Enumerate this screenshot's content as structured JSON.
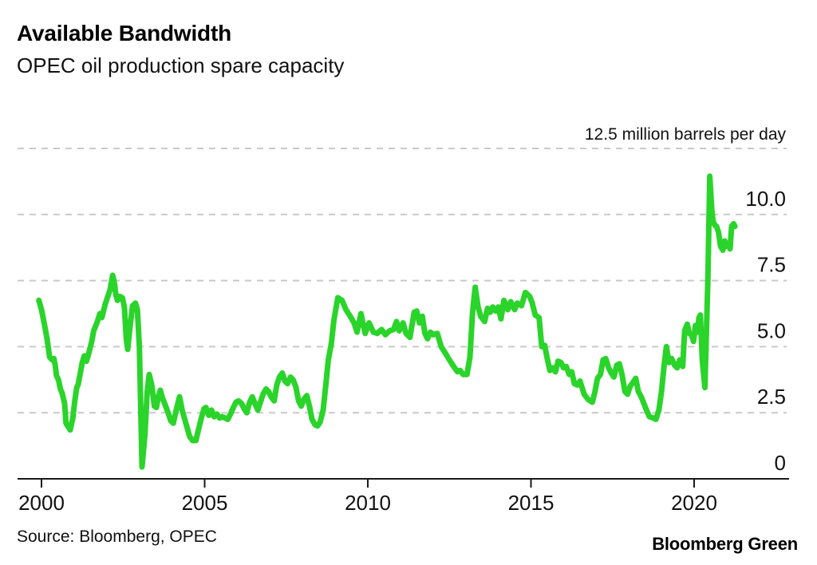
{
  "header": {
    "title": "Available Bandwidth",
    "subtitle": "OPEC oil production spare capacity"
  },
  "footer": {
    "source": "Source: Bloomberg, OPEC",
    "brand": "Bloomberg Green"
  },
  "chart_data": {
    "type": "line",
    "title": "Available Bandwidth",
    "subtitle": "OPEC oil production spare capacity",
    "unit_label": "12.5 million barrels per day",
    "series_name": "OPEC oil production spare capacity (million barrels per day)",
    "grid": "dashed horizontal",
    "legend_position": "none",
    "colors": {
      "line": "#2ad42a",
      "grid": "#c9c9c9",
      "axis": "#1a1a1a",
      "text": "#111111"
    },
    "xlim": [
      1999.9,
      2022.9
    ],
    "ylim": [
      0,
      12.5
    ],
    "x_ticks": [
      {
        "value": 2000,
        "label": "2000"
      },
      {
        "value": 2005,
        "label": "2005"
      },
      {
        "value": 2010,
        "label": "2010"
      },
      {
        "value": 2015,
        "label": "2015"
      },
      {
        "value": 2020,
        "label": "2020"
      }
    ],
    "y_ticks": [
      {
        "value": 12.5,
        "label": "12.5 million barrels per day",
        "kind": "unit"
      },
      {
        "value": 10,
        "label": "10.0",
        "kind": "tick"
      },
      {
        "value": 7.5,
        "label": "7.5",
        "kind": "tick"
      },
      {
        "value": 5,
        "label": "5.0",
        "kind": "tick"
      },
      {
        "value": 2.5,
        "label": "2.5",
        "kind": "tick"
      },
      {
        "value": 0,
        "label": "0",
        "kind": "tick"
      }
    ],
    "points": [
      [
        1999.92,
        6.75
      ],
      [
        2000.0,
        6.4
      ],
      [
        2000.08,
        5.9
      ],
      [
        2000.17,
        5.3
      ],
      [
        2000.25,
        4.6
      ],
      [
        2000.33,
        4.5
      ],
      [
        2000.38,
        4.55
      ],
      [
        2000.42,
        4.3
      ],
      [
        2000.46,
        3.9
      ],
      [
        2000.52,
        3.75
      ],
      [
        2000.58,
        3.4
      ],
      [
        2000.63,
        3.25
      ],
      [
        2000.71,
        2.85
      ],
      [
        2000.75,
        2.1
      ],
      [
        2000.83,
        1.95
      ],
      [
        2000.88,
        1.85
      ],
      [
        2000.96,
        2.3
      ],
      [
        2001.02,
        2.95
      ],
      [
        2001.08,
        3.45
      ],
      [
        2001.12,
        3.55
      ],
      [
        2001.19,
        4.0
      ],
      [
        2001.25,
        4.4
      ],
      [
        2001.31,
        4.65
      ],
      [
        2001.38,
        4.45
      ],
      [
        2001.46,
        4.8
      ],
      [
        2001.54,
        5.2
      ],
      [
        2001.6,
        5.6
      ],
      [
        2001.7,
        5.9
      ],
      [
        2001.79,
        6.25
      ],
      [
        2001.85,
        6.1
      ],
      [
        2001.95,
        6.6
      ],
      [
        2002.02,
        6.85
      ],
      [
        2002.1,
        7.15
      ],
      [
        2002.18,
        7.7
      ],
      [
        2002.23,
        7.45
      ],
      [
        2002.28,
        6.95
      ],
      [
        2002.33,
        6.75
      ],
      [
        2002.4,
        6.9
      ],
      [
        2002.48,
        6.85
      ],
      [
        2002.54,
        6.5
      ],
      [
        2002.6,
        5.3
      ],
      [
        2002.64,
        4.9
      ],
      [
        2002.71,
        5.7
      ],
      [
        2002.79,
        6.55
      ],
      [
        2002.88,
        6.65
      ],
      [
        2002.94,
        6.4
      ],
      [
        2003.0,
        5.0
      ],
      [
        2003.08,
        0.45
      ],
      [
        2003.17,
        1.7
      ],
      [
        2003.24,
        3.3
      ],
      [
        2003.3,
        3.95
      ],
      [
        2003.38,
        3.55
      ],
      [
        2003.46,
        2.75
      ],
      [
        2003.52,
        2.7
      ],
      [
        2003.58,
        3.1
      ],
      [
        2003.64,
        3.35
      ],
      [
        2003.71,
        3.05
      ],
      [
        2003.79,
        2.8
      ],
      [
        2003.88,
        2.5
      ],
      [
        2003.96,
        2.2
      ],
      [
        2004.04,
        2.1
      ],
      [
        2004.13,
        2.6
      ],
      [
        2004.23,
        3.1
      ],
      [
        2004.31,
        2.6
      ],
      [
        2004.38,
        2.3
      ],
      [
        2004.46,
        1.95
      ],
      [
        2004.54,
        1.6
      ],
      [
        2004.63,
        1.45
      ],
      [
        2004.73,
        1.45
      ],
      [
        2004.81,
        1.85
      ],
      [
        2004.9,
        2.3
      ],
      [
        2004.98,
        2.65
      ],
      [
        2005.04,
        2.7
      ],
      [
        2005.13,
        2.4
      ],
      [
        2005.21,
        2.6
      ],
      [
        2005.29,
        2.35
      ],
      [
        2005.38,
        2.45
      ],
      [
        2005.46,
        2.3
      ],
      [
        2005.54,
        2.35
      ],
      [
        2005.63,
        2.3
      ],
      [
        2005.71,
        2.25
      ],
      [
        2005.79,
        2.45
      ],
      [
        2005.88,
        2.7
      ],
      [
        2005.96,
        2.9
      ],
      [
        2006.04,
        2.95
      ],
      [
        2006.13,
        2.85
      ],
      [
        2006.21,
        2.65
      ],
      [
        2006.29,
        2.5
      ],
      [
        2006.38,
        2.9
      ],
      [
        2006.46,
        3.1
      ],
      [
        2006.54,
        2.85
      ],
      [
        2006.63,
        2.6
      ],
      [
        2006.71,
        2.9
      ],
      [
        2006.79,
        3.2
      ],
      [
        2006.88,
        3.4
      ],
      [
        2006.96,
        3.3
      ],
      [
        2007.04,
        3.1
      ],
      [
        2007.13,
        2.95
      ],
      [
        2007.21,
        3.55
      ],
      [
        2007.29,
        3.85
      ],
      [
        2007.38,
        4.0
      ],
      [
        2007.46,
        3.7
      ],
      [
        2007.54,
        3.6
      ],
      [
        2007.63,
        3.85
      ],
      [
        2007.71,
        3.75
      ],
      [
        2007.79,
        3.5
      ],
      [
        2007.88,
        2.95
      ],
      [
        2007.96,
        2.75
      ],
      [
        2008.04,
        3.0
      ],
      [
        2008.13,
        3.15
      ],
      [
        2008.21,
        2.75
      ],
      [
        2008.29,
        2.25
      ],
      [
        2008.38,
        2.05
      ],
      [
        2008.46,
        2.0
      ],
      [
        2008.54,
        2.15
      ],
      [
        2008.63,
        2.6
      ],
      [
        2008.71,
        3.5
      ],
      [
        2008.79,
        4.5
      ],
      [
        2008.88,
        5.1
      ],
      [
        2008.96,
        6.0
      ],
      [
        2009.08,
        6.85
      ],
      [
        2009.21,
        6.75
      ],
      [
        2009.33,
        6.4
      ],
      [
        2009.46,
        6.15
      ],
      [
        2009.58,
        5.9
      ],
      [
        2009.67,
        5.55
      ],
      [
        2009.79,
        6.25
      ],
      [
        2009.92,
        5.5
      ],
      [
        2010.04,
        5.9
      ],
      [
        2010.17,
        5.55
      ],
      [
        2010.29,
        5.5
      ],
      [
        2010.42,
        5.65
      ],
      [
        2010.54,
        5.45
      ],
      [
        2010.67,
        5.6
      ],
      [
        2010.79,
        5.65
      ],
      [
        2010.88,
        5.95
      ],
      [
        2010.96,
        5.6
      ],
      [
        2011.08,
        5.9
      ],
      [
        2011.17,
        5.5
      ],
      [
        2011.29,
        5.35
      ],
      [
        2011.42,
        6.3
      ],
      [
        2011.5,
        6.35
      ],
      [
        2011.58,
        5.9
      ],
      [
        2011.67,
        6.15
      ],
      [
        2011.75,
        5.5
      ],
      [
        2011.83,
        5.3
      ],
      [
        2011.92,
        5.55
      ],
      [
        2012.0,
        5.45
      ],
      [
        2012.13,
        5.5
      ],
      [
        2012.25,
        5.0
      ],
      [
        2012.38,
        4.75
      ],
      [
        2012.5,
        4.5
      ],
      [
        2012.63,
        4.25
      ],
      [
        2012.75,
        4.05
      ],
      [
        2012.83,
        4.1
      ],
      [
        2012.92,
        3.95
      ],
      [
        2013.04,
        3.95
      ],
      [
        2013.13,
        4.6
      ],
      [
        2013.21,
        6.3
      ],
      [
        2013.29,
        7.25
      ],
      [
        2013.38,
        6.5
      ],
      [
        2013.46,
        6.15
      ],
      [
        2013.58,
        5.95
      ],
      [
        2013.67,
        6.45
      ],
      [
        2013.75,
        6.3
      ],
      [
        2013.83,
        6.5
      ],
      [
        2013.92,
        6.35
      ],
      [
        2014.0,
        6.5
      ],
      [
        2014.08,
        6.05
      ],
      [
        2014.17,
        6.75
      ],
      [
        2014.29,
        6.4
      ],
      [
        2014.38,
        6.7
      ],
      [
        2014.5,
        6.4
      ],
      [
        2014.58,
        6.65
      ],
      [
        2014.71,
        6.55
      ],
      [
        2014.83,
        7.05
      ],
      [
        2014.96,
        6.9
      ],
      [
        2015.04,
        6.65
      ],
      [
        2015.13,
        6.2
      ],
      [
        2015.25,
        6.1
      ],
      [
        2015.33,
        5.0
      ],
      [
        2015.42,
        5.05
      ],
      [
        2015.5,
        4.55
      ],
      [
        2015.58,
        4.1
      ],
      [
        2015.67,
        4.2
      ],
      [
        2015.75,
        4.05
      ],
      [
        2015.83,
        4.45
      ],
      [
        2015.92,
        4.4
      ],
      [
        2016.0,
        4.2
      ],
      [
        2016.08,
        4.25
      ],
      [
        2016.17,
        3.95
      ],
      [
        2016.25,
        4.05
      ],
      [
        2016.33,
        3.6
      ],
      [
        2016.42,
        3.55
      ],
      [
        2016.5,
        3.7
      ],
      [
        2016.63,
        3.2
      ],
      [
        2016.75,
        3.0
      ],
      [
        2016.88,
        2.9
      ],
      [
        2016.96,
        3.3
      ],
      [
        2017.04,
        3.8
      ],
      [
        2017.13,
        3.95
      ],
      [
        2017.21,
        4.5
      ],
      [
        2017.29,
        4.55
      ],
      [
        2017.38,
        4.2
      ],
      [
        2017.46,
        4.0
      ],
      [
        2017.54,
        3.85
      ],
      [
        2017.63,
        4.3
      ],
      [
        2017.71,
        4.35
      ],
      [
        2017.79,
        3.95
      ],
      [
        2017.88,
        3.3
      ],
      [
        2017.96,
        3.2
      ],
      [
        2018.04,
        3.5
      ],
      [
        2018.13,
        3.65
      ],
      [
        2018.21,
        3.8
      ],
      [
        2018.29,
        3.3
      ],
      [
        2018.38,
        3.1
      ],
      [
        2018.46,
        2.85
      ],
      [
        2018.54,
        2.6
      ],
      [
        2018.63,
        2.35
      ],
      [
        2018.75,
        2.3
      ],
      [
        2018.83,
        2.25
      ],
      [
        2018.92,
        2.6
      ],
      [
        2019.0,
        3.3
      ],
      [
        2019.08,
        4.3
      ],
      [
        2019.15,
        5.0
      ],
      [
        2019.23,
        4.4
      ],
      [
        2019.31,
        4.55
      ],
      [
        2019.4,
        4.3
      ],
      [
        2019.48,
        4.2
      ],
      [
        2019.56,
        4.5
      ],
      [
        2019.65,
        4.25
      ],
      [
        2019.71,
        5.6
      ],
      [
        2019.79,
        5.85
      ],
      [
        2019.85,
        5.5
      ],
      [
        2019.92,
        5.45
      ],
      [
        2019.98,
        5.2
      ],
      [
        2020.04,
        5.8
      ],
      [
        2020.1,
        5.55
      ],
      [
        2020.15,
        6.1
      ],
      [
        2020.19,
        6.2
      ],
      [
        2020.25,
        4.5
      ],
      [
        2020.33,
        3.45
      ],
      [
        2020.42,
        7.5
      ],
      [
        2020.48,
        11.45
      ],
      [
        2020.54,
        10.2
      ],
      [
        2020.58,
        9.75
      ],
      [
        2020.63,
        9.6
      ],
      [
        2020.69,
        9.55
      ],
      [
        2020.75,
        9.3
      ],
      [
        2020.81,
        8.8
      ],
      [
        2020.88,
        8.65
      ],
      [
        2020.94,
        9.0
      ],
      [
        2020.98,
        8.8
      ],
      [
        2021.04,
        8.9
      ],
      [
        2021.1,
        8.7
      ],
      [
        2021.15,
        9.55
      ],
      [
        2021.21,
        9.65
      ],
      [
        2021.25,
        9.55
      ]
    ]
  }
}
